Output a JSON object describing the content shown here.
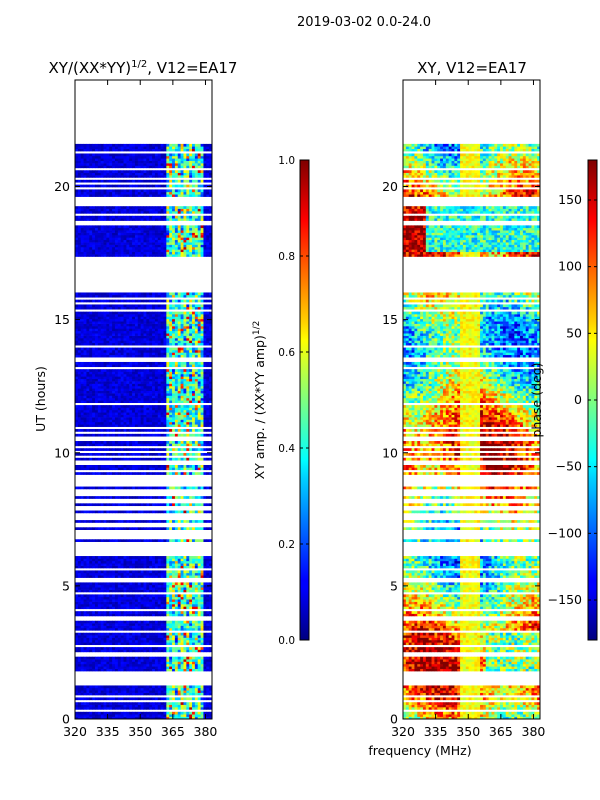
{
  "suptitle": "2019-03-02 0.0-24.0",
  "xlabel": "frequency (MHz)",
  "ylabel": "UT (hours)",
  "chart_data": [
    {
      "type": "heatmap",
      "title": "XY/(XX*YY)",
      "title_exponent": "1/2",
      "title_suffix": ", V12=EA17",
      "xlim": [
        320,
        383
      ],
      "ylim": [
        0,
        24
      ],
      "xticks": [
        320,
        335,
        350,
        365,
        380
      ],
      "yticks": [
        0,
        5,
        10,
        15,
        20
      ],
      "xtick_labels": [
        "320",
        "335",
        "350",
        "365",
        "380"
      ],
      "ytick_labels": [
        "0",
        "5",
        "10",
        "15",
        "20"
      ],
      "data_extent_hours": [
        0,
        21.6
      ],
      "colorbar": {
        "label": "XY amp. / (XX*YY amp)",
        "label_exponent": "1/2",
        "range": [
          0.0,
          1.0
        ],
        "ticks": [
          0.0,
          0.2,
          0.4,
          0.6,
          0.8,
          1.0
        ],
        "tick_labels": [
          "0.0",
          "0.2",
          "0.4",
          "0.6",
          "0.8",
          "1.0"
        ]
      }
    },
    {
      "type": "heatmap",
      "title": "XY, V12=EA17",
      "xlim": [
        320,
        383
      ],
      "ylim": [
        0,
        24
      ],
      "xticks": [
        320,
        335,
        350,
        365,
        380
      ],
      "yticks": [
        0,
        5,
        10,
        15,
        20
      ],
      "xtick_labels": [
        "320",
        "335",
        "350",
        "365",
        "380"
      ],
      "ytick_labels": [
        "0",
        "5",
        "10",
        "15",
        "20"
      ],
      "data_extent_hours": [
        0,
        21.6
      ],
      "colorbar": {
        "label": "phase (deg)",
        "range": [
          -180,
          180
        ],
        "ticks": [
          -150,
          -100,
          -50,
          0,
          50,
          100,
          150
        ],
        "tick_labels": [
          "−150",
          "−100",
          "−50",
          "0",
          "50",
          "100",
          "150"
        ]
      }
    }
  ]
}
